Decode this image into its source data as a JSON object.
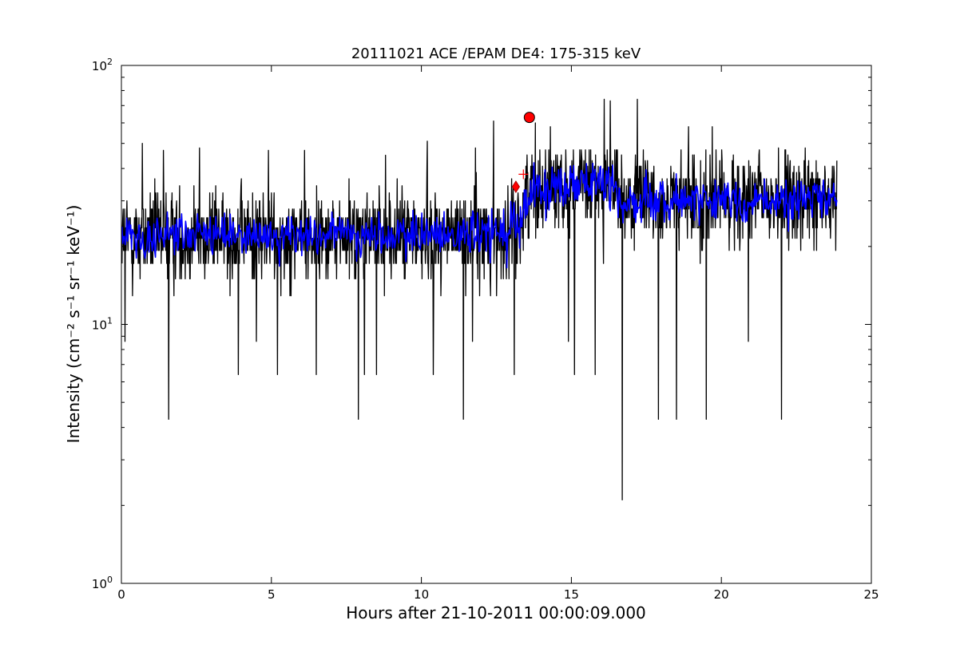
{
  "chart_data": {
    "type": "line",
    "title": "20111021 ACE /EPAM DE4: 175-315 keV",
    "xlabel": "Hours after 21-10-2011 00:00:09.000",
    "ylabel": "Intensity (cm⁻² s⁻¹ sr⁻¹ keV⁻¹)",
    "xlim": [
      0,
      25
    ],
    "ylim": [
      1,
      100
    ],
    "yscale": "log",
    "grid": false,
    "x_ticks": [
      0,
      5,
      10,
      15,
      20,
      25
    ],
    "x_tick_labels": [
      "0",
      "5",
      "10",
      "15",
      "20",
      "25"
    ],
    "y_ticks": [
      1,
      10,
      100
    ],
    "y_tick_labels": [
      {
        "base": "10",
        "exp": "0"
      },
      {
        "base": "10",
        "exp": "1"
      },
      {
        "base": "10",
        "exp": "2"
      }
    ],
    "series": [
      {
        "role": "raw",
        "color": "#000000",
        "x_start": 0.02,
        "x_end": 23.85,
        "n_points": 1900,
        "baseline_before": 22,
        "baseline_after": 30,
        "step_time": 13.4,
        "spikes_down": [
          [
            0.12,
            8.6
          ],
          [
            1.57,
            4.3
          ],
          [
            3.9,
            6.4
          ],
          [
            4.5,
            8.6
          ],
          [
            5.2,
            6.4
          ],
          [
            6.5,
            6.4
          ],
          [
            7.9,
            4.3
          ],
          [
            8.1,
            6.4
          ],
          [
            8.5,
            6.4
          ],
          [
            10.4,
            6.4
          ],
          [
            11.4,
            4.3
          ],
          [
            11.7,
            8.6
          ],
          [
            13.1,
            6.4
          ],
          [
            14.9,
            8.6
          ],
          [
            15.1,
            6.4
          ],
          [
            15.8,
            6.4
          ],
          [
            16.7,
            2.1
          ],
          [
            17.9,
            4.3
          ],
          [
            18.5,
            4.3
          ],
          [
            19.5,
            4.3
          ],
          [
            20.9,
            8.6
          ],
          [
            22.0,
            4.3
          ]
        ],
        "spikes_up": [
          [
            0.7,
            50
          ],
          [
            1.4,
            47
          ],
          [
            2.6,
            48
          ],
          [
            4.9,
            47
          ],
          [
            6.1,
            47
          ],
          [
            8.8,
            45
          ],
          [
            10.2,
            51
          ],
          [
            11.8,
            48
          ],
          [
            12.4,
            61
          ],
          [
            13.8,
            60
          ],
          [
            14.3,
            58
          ],
          [
            16.1,
            74
          ],
          [
            16.3,
            73
          ],
          [
            17.2,
            74
          ],
          [
            18.9,
            58
          ],
          [
            19.7,
            58
          ],
          [
            21.9,
            48
          ],
          [
            22.8,
            48
          ]
        ]
      },
      {
        "role": "smoothed",
        "color": "#0000ff",
        "x_start": 0.02,
        "x_end": 23.85,
        "n_points": 900,
        "baseline_before": 22,
        "baseline_after": 30,
        "step_time": 13.4
      }
    ],
    "markers": [
      {
        "shape": "circle",
        "x": 13.6,
        "y": 63,
        "color": "#ff0000"
      },
      {
        "shape": "diamond",
        "x": 13.15,
        "y": 34,
        "color": "#ff0000"
      },
      {
        "shape": "cross",
        "x": 13.4,
        "y": 38,
        "color": "#ff0000"
      }
    ]
  }
}
